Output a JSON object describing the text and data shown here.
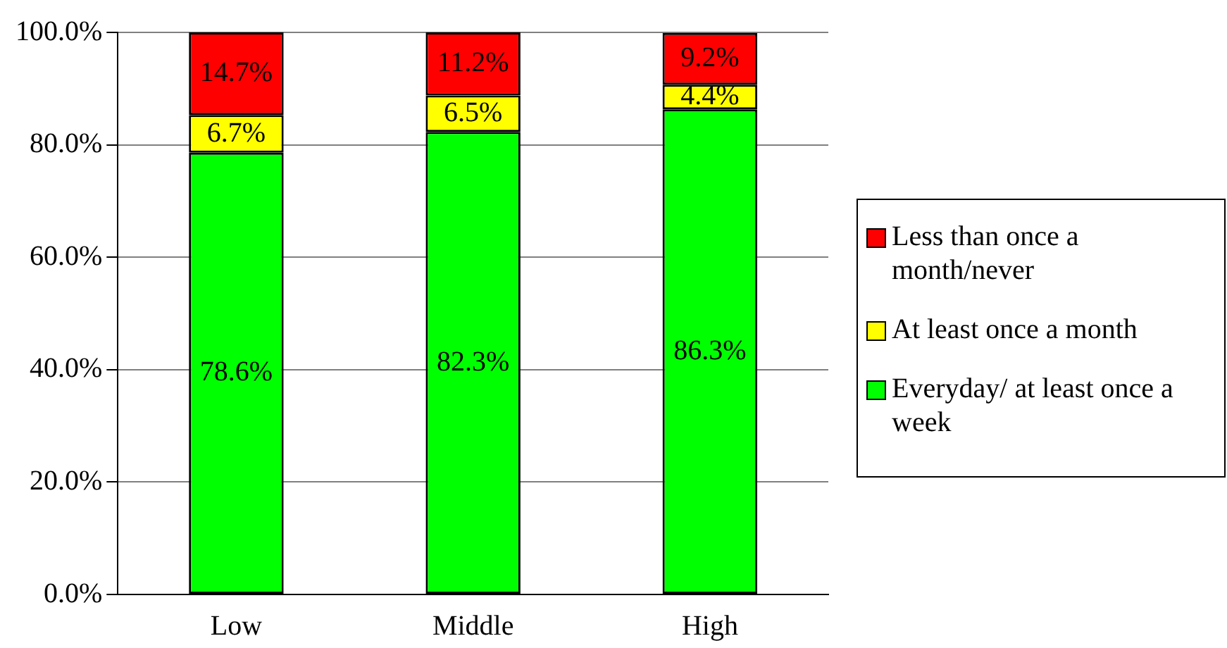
{
  "chart_data": {
    "type": "bar",
    "stacked": true,
    "categories": [
      "Low",
      "Middle",
      "High"
    ],
    "series": [
      {
        "name": "Everyday/ at least once a week",
        "color": "#00ff00",
        "values": [
          78.6,
          82.3,
          86.3
        ],
        "value_labels": [
          "78.6%",
          "82.3%",
          "86.3%"
        ]
      },
      {
        "name": "At least once a month",
        "color": "#ffff00",
        "values": [
          6.7,
          6.5,
          4.4
        ],
        "value_labels": [
          "6.7%",
          "6.5%",
          "4.4%"
        ]
      },
      {
        "name": "Less than once a month/never",
        "color": "#ff0000",
        "values": [
          14.7,
          11.2,
          9.2
        ],
        "value_labels": [
          "14.7%",
          "11.2%",
          "9.2%"
        ]
      }
    ],
    "ylim": [
      0,
      100
    ],
    "yticks": [
      {
        "value": 0,
        "label": "0.0%"
      },
      {
        "value": 20,
        "label": "20.0%"
      },
      {
        "value": 40,
        "label": "40.0%"
      },
      {
        "value": 60,
        "label": "60.0%"
      },
      {
        "value": 80,
        "label": "80.0%"
      },
      {
        "value": 100,
        "label": "100.0%"
      }
    ],
    "grid": "y",
    "legend": "right"
  }
}
